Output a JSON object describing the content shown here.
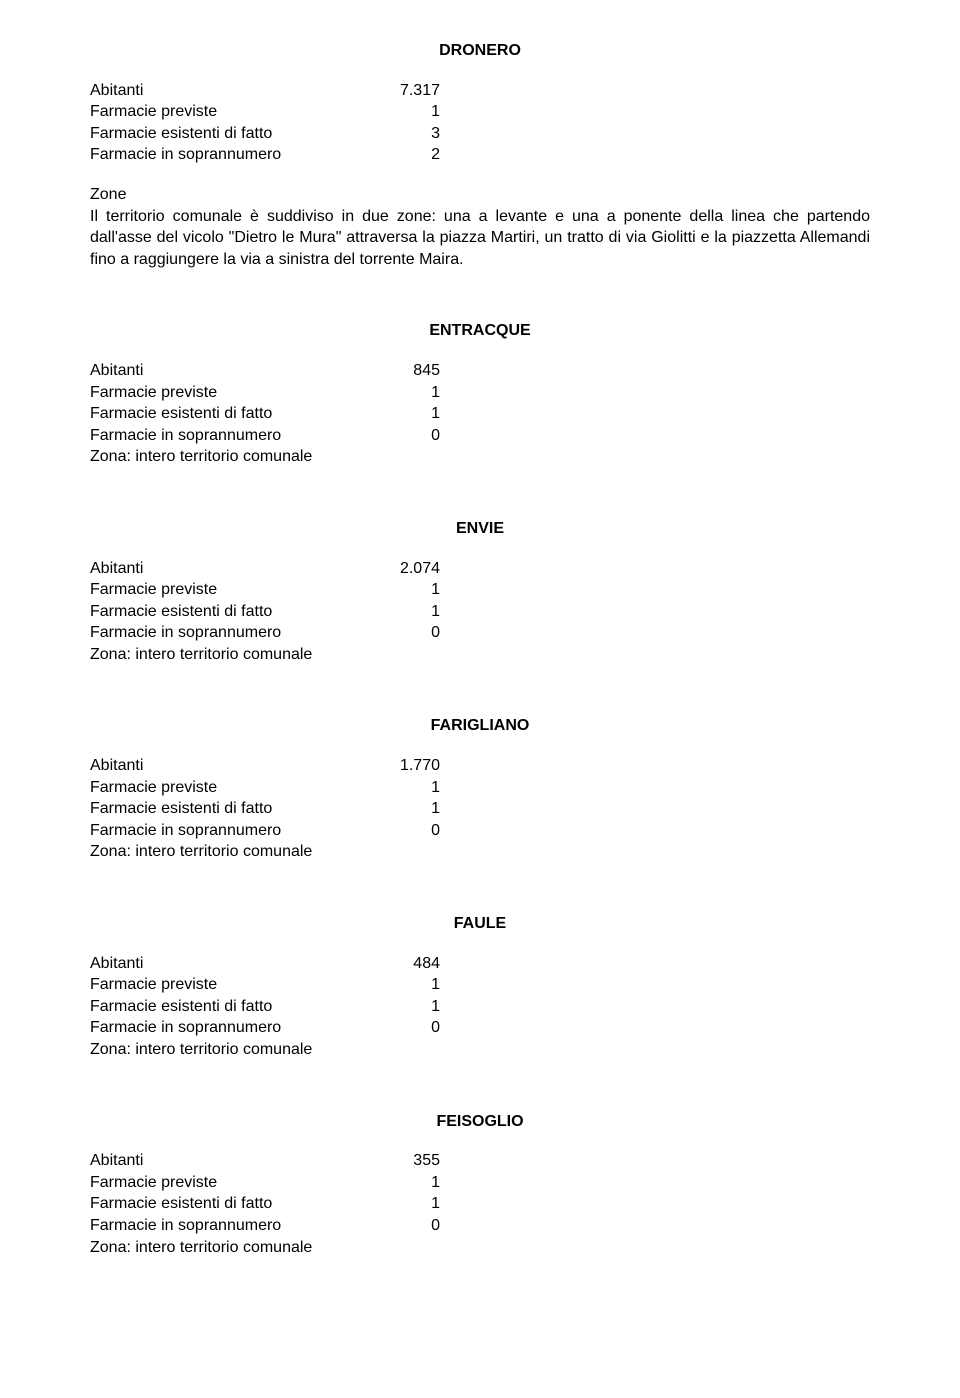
{
  "sections": [
    {
      "title": "DRONERO",
      "rows": [
        {
          "label": "Abitanti",
          "value": "7.317"
        },
        {
          "label": "Farmacie previste",
          "value": "1"
        },
        {
          "label": "Farmacie esistenti di fatto",
          "value": "3"
        },
        {
          "label": "Farmacie in soprannumero",
          "value": "2"
        }
      ],
      "zone_heading": "Zone",
      "zone_text": "Il territorio comunale è suddiviso in due zone: una a levante e una a ponente della linea che partendo dall'asse del vicolo \"Dietro le Mura\" attraversa la piazza Martiri, un tratto di via Giolitti e la piazzetta Allemandi fino a raggiungere la via a sinistra del torrente Maira."
    },
    {
      "title": "ENTRACQUE",
      "rows": [
        {
          "label": "Abitanti",
          "value": "845"
        },
        {
          "label": "Farmacie previste",
          "value": "1"
        },
        {
          "label": "Farmacie esistenti di fatto",
          "value": "1"
        },
        {
          "label": "Farmacie in soprannumero",
          "value": "0"
        }
      ],
      "zona": "Zona: intero territorio comunale"
    },
    {
      "title": "ENVIE",
      "rows": [
        {
          "label": "Abitanti",
          "value": "2.074"
        },
        {
          "label": "Farmacie previste",
          "value": "1"
        },
        {
          "label": "Farmacie esistenti di fatto",
          "value": "1"
        },
        {
          "label": "Farmacie in soprannumero",
          "value": "0"
        }
      ],
      "zona": "Zona: intero territorio comunale"
    },
    {
      "title": "FARIGLIANO",
      "rows": [
        {
          "label": "Abitanti",
          "value": "1.770"
        },
        {
          "label": "Farmacie previste",
          "value": "1"
        },
        {
          "label": "Farmacie esistenti di fatto",
          "value": "1"
        },
        {
          "label": "Farmacie in soprannumero",
          "value": "0"
        }
      ],
      "zona": "Zona: intero territorio comunale"
    },
    {
      "title": "FAULE",
      "rows": [
        {
          "label": "Abitanti",
          "value": "484"
        },
        {
          "label": "Farmacie previste",
          "value": "1"
        },
        {
          "label": "Farmacie esistenti di fatto",
          "value": "1"
        },
        {
          "label": "Farmacie in soprannumero",
          "value": "0"
        }
      ],
      "zona": "Zona: intero territorio comunale"
    },
    {
      "title": "FEISOGLIO",
      "rows": [
        {
          "label": "Abitanti",
          "value": "355"
        },
        {
          "label": "Farmacie previste",
          "value": "1"
        },
        {
          "label": "Farmacie esistenti di fatto",
          "value": "1"
        },
        {
          "label": "Farmacie  in soprannumero",
          "value": "0"
        }
      ],
      "zona": "Zona: intero territorio comunale"
    }
  ]
}
